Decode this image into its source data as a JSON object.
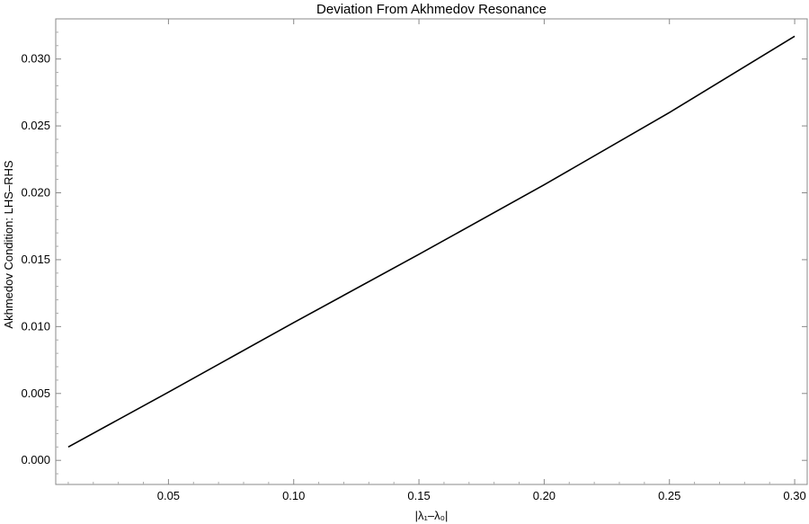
{
  "chart_data": {
    "type": "line",
    "title": "Deviation From Akhmedov Resonance",
    "xlabel": "|λ₁–λ₀|",
    "ylabel": "Akhmedov Condition: LHS–RHS",
    "xlim": [
      0.005,
      0.305
    ],
    "ylim": [
      -0.0018,
      0.033
    ],
    "x_ticks": [
      0.05,
      0.1,
      0.15,
      0.2,
      0.25,
      0.3
    ],
    "x_tick_labels": [
      "0.05",
      "0.10",
      "0.15",
      "0.20",
      "0.25",
      "0.30"
    ],
    "y_ticks": [
      0.0,
      0.005,
      0.01,
      0.015,
      0.02,
      0.025,
      0.03
    ],
    "y_tick_labels": [
      "0.000",
      "0.005",
      "0.010",
      "0.015",
      "0.020",
      "0.025",
      "0.030"
    ],
    "grid": false,
    "series": [
      {
        "color": "#000000",
        "x": [
          0.01,
          0.05,
          0.1,
          0.15,
          0.2,
          0.25,
          0.3
        ],
        "y": [
          0.001,
          0.0051,
          0.0103,
          0.0154,
          0.0206,
          0.026,
          0.0317
        ]
      }
    ]
  }
}
